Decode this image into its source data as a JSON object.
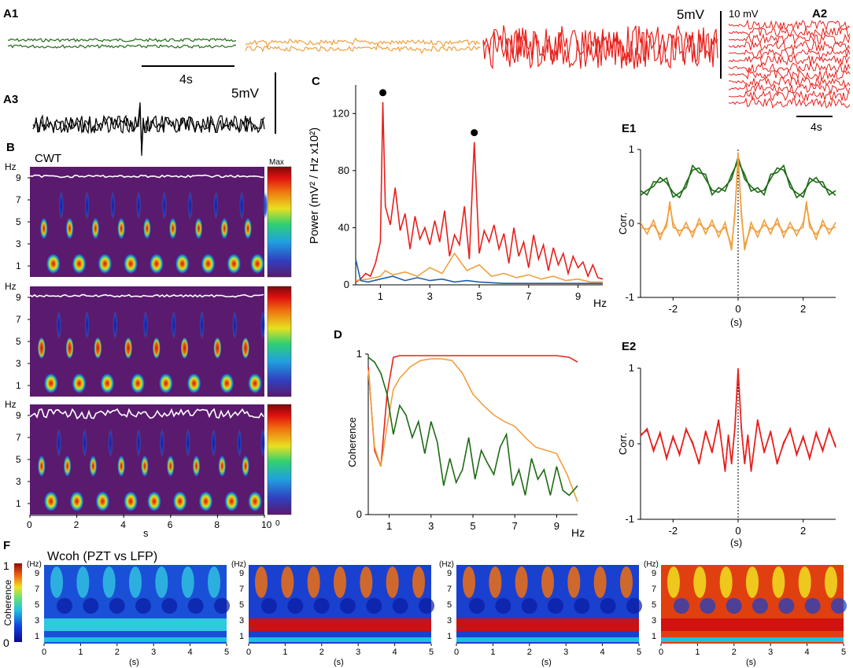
{
  "chart_data": [
    {
      "type": "line",
      "panel": "A1",
      "label": "A1",
      "scale_label": "5mV",
      "time_scale_label": "4s",
      "series": [
        {
          "name": "green",
          "color": "#1e6b14",
          "amplitude": 0.3
        },
        {
          "name": "orange",
          "color": "#f0a040",
          "amplitude": 0.5
        },
        {
          "name": "red",
          "color": "#e8201c",
          "amplitude": 4.0
        }
      ]
    },
    {
      "type": "line",
      "panel": "A2",
      "label": "A2",
      "scale_label": "10 mV",
      "time_scale_label": "4s",
      "traces": 12,
      "color": "#e8201c"
    },
    {
      "type": "line",
      "panel": "A3",
      "label": "A3",
      "scale_label": "5mV",
      "color": "#000000"
    },
    {
      "type": "heatmap",
      "panel": "B",
      "label": "B",
      "title": "CWT",
      "ylabel": "Hz",
      "xlabel": "s",
      "yticks": [
        "9",
        "7",
        "5",
        "3",
        "1"
      ],
      "xticks": [
        "0",
        "2",
        "4",
        "6",
        "8",
        "10"
      ],
      "colorbar_max": "Max",
      "colorbar_min": "0",
      "rows": [
        {
          "name": "green",
          "blob_times": [
            1.0,
            2.1,
            3.2,
            4.3,
            5.4,
            6.5,
            7.6,
            8.7,
            9.7
          ]
        },
        {
          "name": "orange",
          "blob_times": [
            0.9,
            2.1,
            3.3,
            4.6,
            5.8,
            7.0,
            8.4,
            9.6
          ]
        },
        {
          "name": "red",
          "blob_times": [
            0.9,
            2.0,
            3.1,
            4.3,
            5.3,
            6.4,
            7.5,
            8.6,
            9.6
          ]
        }
      ]
    },
    {
      "type": "line",
      "panel": "C",
      "label": "C",
      "ylabel": "Power (mV² / Hz x10²)",
      "xlabel": "Hz",
      "xlim": [
        0,
        10
      ],
      "ylim": [
        0,
        140
      ],
      "yticks": [
        0,
        40,
        80,
        120
      ],
      "xticks": [
        1,
        3,
        5,
        7,
        9
      ],
      "peaks": [
        {
          "x": 1.1,
          "y": 128
        },
        {
          "x": 4.8,
          "y": 100
        }
      ],
      "series": [
        {
          "name": "red",
          "color": "#e8201c",
          "x": [
            0.0,
            0.2,
            0.4,
            0.6,
            0.8,
            1.0,
            1.1,
            1.2,
            1.4,
            1.6,
            1.8,
            2.0,
            2.2,
            2.4,
            2.6,
            2.8,
            3.0,
            3.2,
            3.4,
            3.6,
            3.8,
            4.0,
            4.2,
            4.4,
            4.6,
            4.8,
            5.0,
            5.2,
            5.4,
            5.6,
            5.8,
            6.0,
            6.2,
            6.4,
            6.6,
            6.8,
            7.0,
            7.2,
            7.4,
            7.6,
            7.8,
            8.0,
            8.2,
            8.4,
            8.6,
            8.8,
            9.0,
            9.2,
            9.4,
            9.6,
            9.8,
            10.0
          ],
          "y": [
            2,
            4,
            8,
            6,
            15,
            30,
            128,
            55,
            42,
            68,
            38,
            50,
            25,
            48,
            32,
            40,
            28,
            45,
            30,
            52,
            20,
            35,
            28,
            55,
            18,
            100,
            22,
            38,
            30,
            42,
            25,
            36,
            15,
            40,
            20,
            30,
            12,
            35,
            18,
            28,
            10,
            26,
            14,
            22,
            8,
            20,
            12,
            16,
            6,
            14,
            5,
            4
          ]
        },
        {
          "name": "orange",
          "color": "#f0a040",
          "x": [
            0.0,
            0.5,
            1.0,
            1.2,
            1.5,
            2.0,
            2.5,
            3.0,
            3.5,
            4.0,
            4.5,
            5.0,
            5.5,
            6.0,
            6.5,
            7.0,
            7.5,
            8.0,
            8.5,
            9.0,
            9.5,
            10.0
          ],
          "y": [
            3,
            4,
            6,
            10,
            7,
            9,
            6,
            12,
            8,
            22,
            10,
            14,
            6,
            8,
            5,
            7,
            4,
            6,
            3,
            4,
            2,
            2
          ]
        },
        {
          "name": "blue",
          "color": "#1f5fa8",
          "x": [
            0.0,
            0.2,
            0.5,
            1.0,
            1.5,
            2.0,
            2.5,
            3.0,
            3.5,
            4.0,
            4.5,
            5.0,
            6.0,
            7.0,
            8.0,
            9.0,
            10.0
          ],
          "y": [
            18,
            3,
            2,
            4,
            6,
            3,
            5,
            3,
            4,
            2,
            3,
            2,
            1,
            1,
            1,
            1,
            1
          ]
        }
      ]
    },
    {
      "type": "line",
      "panel": "D",
      "label": "D",
      "ylabel": "Coherence",
      "xlabel": "Hz",
      "xlim": [
        0,
        10
      ],
      "ylim": [
        0,
        1
      ],
      "yticks": [
        0,
        1
      ],
      "xticks": [
        1,
        3,
        5,
        7,
        9
      ],
      "series": [
        {
          "name": "red",
          "color": "#e8201c",
          "x": [
            0.0,
            0.3,
            0.6,
            0.9,
            1.2,
            1.5,
            2.0,
            3.0,
            4.0,
            5.0,
            6.0,
            7.0,
            8.0,
            9.0,
            9.6,
            10.0
          ],
          "y": [
            0.92,
            0.4,
            0.3,
            0.75,
            0.98,
            0.99,
            0.99,
            0.99,
            0.99,
            0.99,
            0.99,
            0.99,
            0.99,
            0.99,
            0.98,
            0.95
          ]
        },
        {
          "name": "orange",
          "color": "#f0a040",
          "x": [
            0.0,
            0.3,
            0.6,
            0.9,
            1.2,
            1.5,
            2.0,
            2.5,
            3.0,
            3.5,
            4.0,
            4.5,
            5.0,
            5.5,
            6.0,
            6.5,
            7.0,
            7.5,
            8.0,
            8.5,
            9.0,
            9.5,
            10.0
          ],
          "y": [
            0.9,
            0.42,
            0.3,
            0.55,
            0.78,
            0.85,
            0.92,
            0.96,
            0.97,
            0.97,
            0.96,
            0.88,
            0.75,
            0.68,
            0.62,
            0.58,
            0.55,
            0.48,
            0.42,
            0.4,
            0.38,
            0.25,
            0.08
          ]
        },
        {
          "name": "green",
          "color": "#1e6b14",
          "x": [
            0.0,
            0.3,
            0.6,
            0.9,
            1.2,
            1.5,
            1.8,
            2.1,
            2.4,
            2.7,
            3.0,
            3.3,
            3.6,
            3.9,
            4.2,
            4.5,
            4.8,
            5.1,
            5.4,
            5.7,
            6.0,
            6.3,
            6.6,
            6.9,
            7.2,
            7.5,
            7.8,
            8.1,
            8.4,
            8.7,
            9.0,
            9.3,
            9.6,
            10.0
          ],
          "y": [
            0.98,
            0.95,
            0.88,
            0.75,
            0.5,
            0.68,
            0.62,
            0.48,
            0.58,
            0.38,
            0.58,
            0.45,
            0.18,
            0.35,
            0.2,
            0.28,
            0.48,
            0.22,
            0.4,
            0.32,
            0.25,
            0.42,
            0.5,
            0.18,
            0.28,
            0.12,
            0.35,
            0.22,
            0.28,
            0.12,
            0.3,
            0.15,
            0.12,
            0.18
          ]
        }
      ]
    },
    {
      "type": "line",
      "panel": "E1",
      "label": "E1",
      "ylabel": "Corr.",
      "xlabel": "(s)",
      "xlim": [
        -3,
        3
      ],
      "ylim": [
        -1,
        1
      ],
      "yticks": [
        -1,
        0,
        1
      ],
      "xticks": [
        -2,
        0,
        2
      ],
      "series": [
        {
          "name": "green",
          "color": "#1e6b14",
          "x": [
            -3,
            -2.8,
            -2.6,
            -2.4,
            -2.2,
            -2.0,
            -1.8,
            -1.6,
            -1.4,
            -1.2,
            -1.0,
            -0.8,
            -0.6,
            -0.4,
            -0.2,
            0,
            0.2,
            0.4,
            0.6,
            0.8,
            1.0,
            1.2,
            1.4,
            1.6,
            1.8,
            2.0,
            2.2,
            2.4,
            2.6,
            2.8,
            3.0
          ],
          "y": [
            0.38,
            0.45,
            0.5,
            0.62,
            0.55,
            0.42,
            0.35,
            0.55,
            0.72,
            0.75,
            0.6,
            0.45,
            0.42,
            0.5,
            0.6,
            0.9,
            0.6,
            0.5,
            0.42,
            0.45,
            0.6,
            0.75,
            0.72,
            0.55,
            0.35,
            0.42,
            0.55,
            0.62,
            0.5,
            0.45,
            0.38
          ]
        },
        {
          "name": "orange",
          "color": "#f0a040",
          "x": [
            -3,
            -2.8,
            -2.6,
            -2.4,
            -2.2,
            -2.1,
            -2.0,
            -1.8,
            -1.6,
            -1.4,
            -1.2,
            -1.0,
            -0.8,
            -0.6,
            -0.4,
            -0.2,
            -0.1,
            0,
            0.1,
            0.2,
            0.4,
            0.6,
            0.8,
            1.0,
            1.2,
            1.4,
            1.6,
            1.8,
            2.0,
            2.1,
            2.2,
            2.4,
            2.6,
            2.8,
            3.0
          ],
          "y": [
            -0.05,
            -0.08,
            -0.02,
            -0.15,
            -0.05,
            0.3,
            -0.05,
            -0.1,
            -0.05,
            -0.12,
            0.0,
            -0.08,
            -0.02,
            -0.12,
            -0.05,
            -0.3,
            0.1,
            0.95,
            0.1,
            -0.3,
            -0.05,
            -0.12,
            -0.02,
            -0.08,
            0.0,
            -0.12,
            -0.05,
            -0.1,
            -0.05,
            0.3,
            -0.05,
            -0.15,
            -0.02,
            -0.08,
            -0.05
          ]
        }
      ]
    },
    {
      "type": "line",
      "panel": "E2",
      "label": "E2",
      "ylabel": "Corr.",
      "xlabel": "(s)",
      "xlim": [
        -3,
        3
      ],
      "ylim": [
        -1,
        1
      ],
      "yticks": [
        -1,
        0,
        1
      ],
      "xticks": [
        -2,
        0,
        2
      ],
      "series": [
        {
          "name": "red",
          "color": "#e8201c",
          "x": [
            -3,
            -2.8,
            -2.6,
            -2.4,
            -2.2,
            -2.0,
            -1.8,
            -1.6,
            -1.4,
            -1.2,
            -1.0,
            -0.8,
            -0.6,
            -0.4,
            -0.3,
            -0.2,
            -0.1,
            0,
            0.1,
            0.2,
            0.3,
            0.4,
            0.6,
            0.8,
            1.0,
            1.2,
            1.4,
            1.6,
            1.8,
            2.0,
            2.2,
            2.4,
            2.6,
            2.8,
            3.0
          ],
          "y": [
            0.1,
            0.2,
            -0.1,
            0.15,
            -0.2,
            0.1,
            -0.15,
            0.2,
            0.0,
            -0.25,
            0.15,
            -0.1,
            0.3,
            -0.35,
            0.1,
            -0.25,
            0.2,
            1.0,
            0.2,
            -0.25,
            0.1,
            -0.35,
            0.3,
            -0.1,
            0.15,
            -0.25,
            0.0,
            0.2,
            -0.15,
            0.1,
            -0.2,
            0.15,
            -0.1,
            0.2,
            -0.05
          ]
        }
      ]
    },
    {
      "type": "heatmap",
      "panel": "F",
      "label": "F",
      "title": "Wcoh (PZT vs LFP)",
      "colorbar_label": "Coherence",
      "colorbar_max": "1",
      "colorbar_min": "0",
      "ylabel": "(Hz)",
      "xlabel": "(s)",
      "yticks": [
        "9",
        "7",
        "5",
        "3",
        "1"
      ],
      "xticks": [
        "0",
        "1",
        "2",
        "3",
        "4",
        "5"
      ],
      "maps": [
        {
          "name": "green",
          "mean_coherence": 0.25
        },
        {
          "name": "orange",
          "mean_coherence": 0.55
        },
        {
          "name": "orange2",
          "mean_coherence": 0.6
        },
        {
          "name": "red",
          "mean_coherence": 0.85
        }
      ]
    }
  ]
}
